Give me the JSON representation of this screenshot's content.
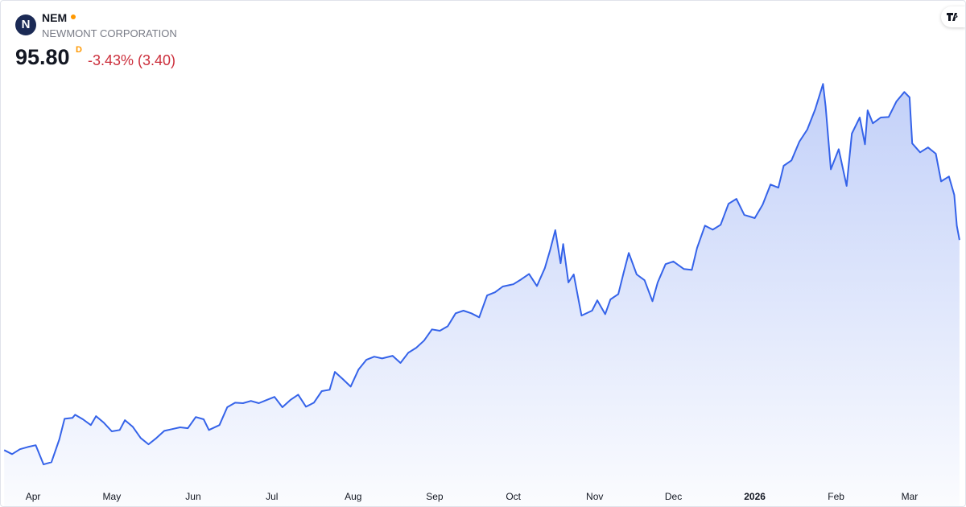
{
  "header": {
    "symbol": "NEM",
    "company": "NEWMONT CORPORATION",
    "price": "95.80",
    "interval": "D",
    "change": "-3.43% (3.40)"
  },
  "chart_data": {
    "type": "area",
    "color": "#3563e9",
    "x": [
      -11,
      -8,
      -5,
      -2,
      1,
      4,
      7,
      10,
      12,
      15,
      16,
      19,
      22,
      24,
      27,
      30,
      33,
      35,
      38,
      41,
      44,
      47,
      50,
      53,
      56,
      59,
      62,
      65,
      67,
      71,
      74,
      77,
      80,
      83,
      86,
      89,
      92,
      95,
      98,
      101,
      104,
      107,
      110,
      113,
      115,
      118,
      121,
      124,
      127,
      130,
      133,
      137,
      140,
      143,
      146,
      149,
      152,
      155,
      158,
      161,
      164,
      167,
      170,
      173,
      176,
      179,
      183,
      186,
      189,
      192,
      195,
      197,
      199,
      201,
      202,
      204,
      206,
      209,
      213,
      215,
      218,
      220,
      223,
      225,
      227,
      230,
      233,
      236,
      238,
      241,
      244,
      248,
      251,
      253,
      256,
      259,
      262,
      265,
      268,
      271,
      275,
      278,
      281,
      284,
      286,
      289,
      292,
      295,
      298,
      301,
      302,
      304,
      307,
      310,
      312,
      315,
      317,
      318,
      320,
      323,
      326,
      329,
      332,
      334,
      335,
      338,
      341,
      344,
      346,
      349,
      351,
      352,
      353
    ],
    "values": [
      48.8,
      47.9,
      49.0,
      49.5,
      49.9,
      45.6,
      46.1,
      51.2,
      55.8,
      56.0,
      56.7,
      55.7,
      54.4,
      56.4,
      54.9,
      53.0,
      53.3,
      55.5,
      54.0,
      51.5,
      50.1,
      51.5,
      53.1,
      53.5,
      53.9,
      53.7,
      56.2,
      55.7,
      53.3,
      54.4,
      58.4,
      59.4,
      59.3,
      59.8,
      59.3,
      60.0,
      60.7,
      58.4,
      60.0,
      61.2,
      58.5,
      59.4,
      62.0,
      62.3,
      66.3,
      64.7,
      63.0,
      66.8,
      69.0,
      69.7,
      69.3,
      69.9,
      68.3,
      70.6,
      71.7,
      73.3,
      75.8,
      75.5,
      76.5,
      79.4,
      80.0,
      79.4,
      78.5,
      83.4,
      84.1,
      85.4,
      85.9,
      87.0,
      88.2,
      85.5,
      89.5,
      93.5,
      98.0,
      90.6,
      94.9,
      86.3,
      88.1,
      78.9,
      80.0,
      82.3,
      79.2,
      82.5,
      83.7,
      88.4,
      92.9,
      88.1,
      86.8,
      82.1,
      86.3,
      90.4,
      91.0,
      89.3,
      89.1,
      94.0,
      99.0,
      98.1,
      99.2,
      103.9,
      105.0,
      101.4,
      100.7,
      103.7,
      108.2,
      107.5,
      112.4,
      113.6,
      117.8,
      120.5,
      125.0,
      130.7,
      125.7,
      111.6,
      116.1,
      107.9,
      119.6,
      123.2,
      117.2,
      124.8,
      121.9,
      123.2,
      123.3,
      126.8,
      128.9,
      127.7,
      117.4,
      115.4,
      116.5,
      115.1,
      108.9,
      110.0,
      105.9,
      99.0,
      95.8
    ],
    "xlim": [
      -12.3,
      355.8
    ],
    "ylim": [
      41.3,
      149.3
    ],
    "xticks": [
      {
        "value": 0,
        "label": "Apr"
      },
      {
        "value": 30,
        "label": "May"
      },
      {
        "value": 61,
        "label": "Jun"
      },
      {
        "value": 91,
        "label": "Jul"
      },
      {
        "value": 122,
        "label": "Aug"
      },
      {
        "value": 153,
        "label": "Sep"
      },
      {
        "value": 183,
        "label": "Oct"
      },
      {
        "value": 214,
        "label": "Nov"
      },
      {
        "value": 244,
        "label": "Dec"
      },
      {
        "value": 275,
        "label": "2026"
      },
      {
        "value": 306,
        "label": "Feb"
      },
      {
        "value": 334,
        "label": "Mar"
      }
    ]
  }
}
